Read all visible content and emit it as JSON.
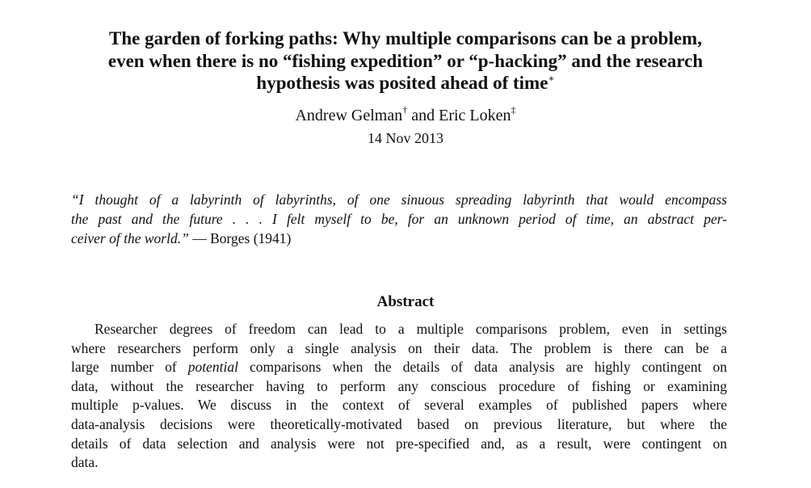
{
  "title": {
    "lines": [
      "The garden of forking paths: Why multiple comparisons can be a problem,",
      "even when there is no “fishing expedition” or “p-hacking” and the research",
      "hypothesis was posited ahead of time"
    ],
    "footnote_mark": "∗"
  },
  "authors": {
    "author1": "Andrew Gelman",
    "author1_mark": "†",
    "conjunction": "and",
    "author2": "Eric Loken",
    "author2_mark": "‡"
  },
  "date": "14 Nov 2013",
  "epigraph": {
    "lines": [
      "“I thought of a labyrinth of labyrinths, of one sinuous spreading labyrinth that would encompass",
      "the past and the future . . . I felt myself to be, for an unknown period of time, an abstract per-",
      "ceiver of the world.”"
    ],
    "attribution": " — Borges (1941)"
  },
  "abstract": {
    "heading": "Abstract",
    "line1": "Researcher degrees of freedom can lead to a multiple comparisons problem, even in settings",
    "line2": "where researchers perform only a single analysis on their data. The problem is there can be a",
    "line3_before": "large number of ",
    "line3_emph": "potential",
    "line3_after": " comparisons when the details of data analysis are highly contingent on",
    "line4": "data, without the researcher having to perform any conscious procedure of fishing or examining",
    "line5": "multiple p-values. We discuss in the context of several examples of published papers where",
    "line6": "data-analysis decisions were theoretically-motivated based on previous literature, but where the",
    "line7": "details of data selection and analysis were not pre-specified and, as a result, were contingent on",
    "line8": "data."
  }
}
